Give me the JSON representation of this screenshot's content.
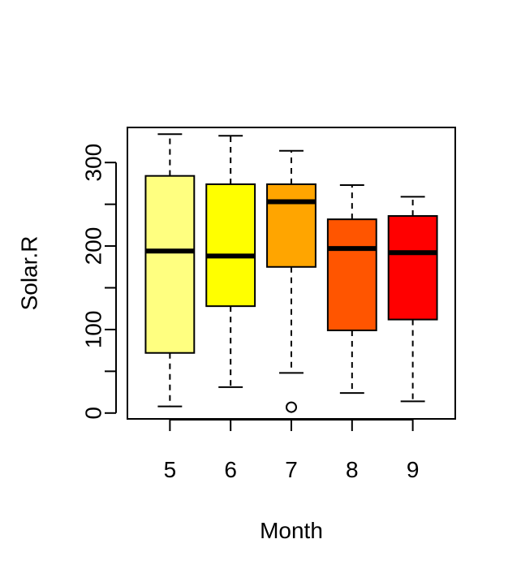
{
  "chart_data": {
    "type": "boxplot",
    "title": "",
    "xlabel": "Month",
    "ylabel": "Solar.R",
    "categories": [
      "5",
      "6",
      "7",
      "8",
      "9"
    ],
    "y_ticks": [
      "0",
      "100",
      "200",
      "300"
    ],
    "ylim": [
      -7,
      342
    ],
    "box_colors": [
      "#FFFF80",
      "#FFFF00",
      "#FFA500",
      "#FF5500",
      "#FF0000"
    ],
    "boxes": [
      {
        "category": "5",
        "whisker_low": 8,
        "q1": 72,
        "median": 194,
        "q3": 284,
        "whisker_high": 334,
        "outliers": []
      },
      {
        "category": "6",
        "whisker_low": 31,
        "q1": 128,
        "median": 188,
        "q3": 274,
        "whisker_high": 332,
        "outliers": []
      },
      {
        "category": "7",
        "whisker_low": 48,
        "q1": 175,
        "median": 253,
        "q3": 274,
        "whisker_high": 314,
        "outliers": [
          7
        ]
      },
      {
        "category": "8",
        "whisker_low": 24,
        "q1": 99,
        "median": 197,
        "q3": 232,
        "whisker_high": 273,
        "outliers": []
      },
      {
        "category": "9",
        "whisker_low": 14,
        "q1": 112,
        "median": 192,
        "q3": 236,
        "whisker_high": 259,
        "outliers": []
      }
    ]
  }
}
